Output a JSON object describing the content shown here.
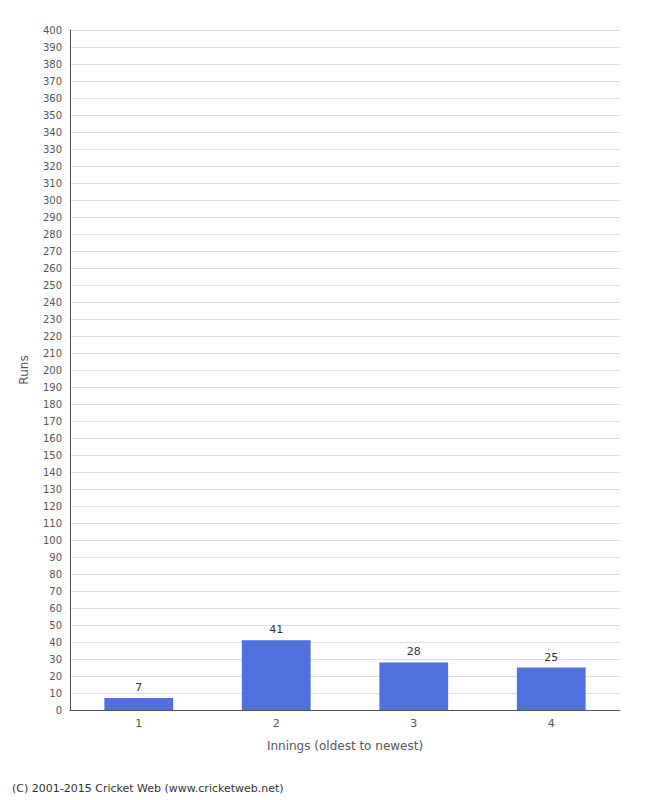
{
  "chart_data": {
    "type": "bar",
    "categories": [
      1,
      2,
      3,
      4
    ],
    "values": [
      7,
      41,
      28,
      25
    ],
    "xlabel": "Innings (oldest to newest)",
    "ylabel": "Runs",
    "ylim": [
      0,
      400
    ],
    "yticks": [
      0,
      10,
      20,
      30,
      40,
      50,
      60,
      70,
      80,
      90,
      100,
      110,
      120,
      130,
      140,
      150,
      160,
      170,
      180,
      190,
      200,
      210,
      220,
      230,
      240,
      250,
      260,
      270,
      280,
      290,
      300,
      310,
      320,
      330,
      340,
      350,
      360,
      370,
      380,
      390,
      400
    ],
    "grid": true,
    "data_labels": true,
    "annotations": [
      "(C) 2001-2015 Cricket Web (www.cricketweb.net)"
    ]
  }
}
